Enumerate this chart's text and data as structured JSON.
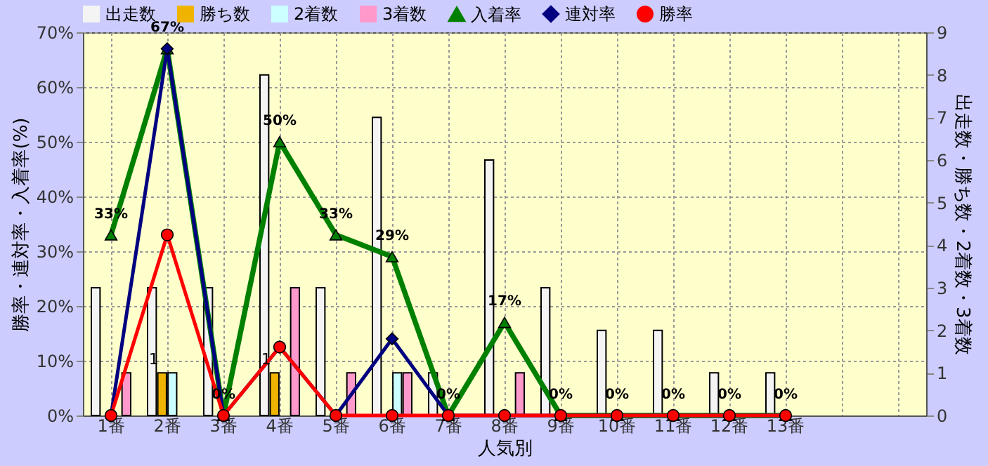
{
  "chart_data": {
    "type": "bar",
    "xlabel": "人気別",
    "ylabel": "勝率・連対率・入着率(%)",
    "y2label": "出走数・勝ち数・2着数・3着数",
    "categories": [
      "1番",
      "2番",
      "3番",
      "4番",
      "5番",
      "6番",
      "7番",
      "8番",
      "9番",
      "10番",
      "11番",
      "12番",
      "13番",
      null,
      null
    ],
    "ylim": [
      0,
      70
    ],
    "yticks": [
      {
        "value": 0,
        "label": "0%"
      },
      {
        "value": 10,
        "label": "10%"
      },
      {
        "value": 20,
        "label": "20%"
      },
      {
        "value": 30,
        "label": "30%"
      },
      {
        "value": 40,
        "label": "40%"
      },
      {
        "value": 50,
        "label": "50%"
      },
      {
        "value": 60,
        "label": "60%"
      },
      {
        "value": 70,
        "label": "70%"
      }
    ],
    "y2lim": [
      0,
      9
    ],
    "y2ticks": [
      0,
      1,
      2,
      3,
      4,
      5,
      6,
      7,
      8,
      9
    ],
    "grid": true,
    "legend": "top",
    "series": [
      {
        "name": "出走数",
        "axis": "y2",
        "color": "#f4f4f4",
        "values": [
          3,
          3,
          3,
          8,
          3,
          7,
          1,
          6,
          3,
          2,
          2,
          1,
          1,
          null,
          null
        ]
      },
      {
        "name": "勝ち数",
        "axis": "y2",
        "color": "#f0b400",
        "values": [
          0,
          1,
          0,
          1,
          0,
          0,
          0,
          0,
          0,
          0,
          0,
          0,
          0,
          null,
          null
        ],
        "value_labels": [
          null,
          "1",
          null,
          "1",
          null,
          null,
          null,
          null,
          null,
          null,
          null,
          null,
          null,
          null,
          null
        ]
      },
      {
        "name": "2着数",
        "axis": "y2",
        "color": "#ccffff",
        "values": [
          0,
          1,
          0,
          0,
          0,
          1,
          0,
          0,
          0,
          0,
          0,
          0,
          0,
          null,
          null
        ]
      },
      {
        "name": "3着数",
        "axis": "y2",
        "color": "#ff99cc",
        "values": [
          1,
          0,
          0,
          3,
          1,
          1,
          0,
          1,
          0,
          0,
          0,
          0,
          0,
          null,
          null
        ]
      },
      {
        "name": "入着率",
        "type": "line",
        "marker": "triangle",
        "color": "#008000",
        "values": [
          33,
          67,
          0,
          50,
          33,
          29,
          0,
          17,
          0,
          0,
          0,
          0,
          0,
          null,
          null
        ],
        "value_labels": [
          "33%",
          "67%",
          "0%",
          "50%",
          "33%",
          "29%",
          "0%",
          "17%",
          "0%",
          "0%",
          "0%",
          "0%",
          "0%",
          null,
          null
        ]
      },
      {
        "name": "連対率",
        "type": "line",
        "marker": "diamond",
        "color": "#000080",
        "values": [
          0,
          67,
          0,
          12.5,
          0,
          14,
          0,
          0,
          0,
          0,
          0,
          0,
          0,
          null,
          null
        ]
      },
      {
        "name": "勝率",
        "type": "line",
        "marker": "circle",
        "color": "#ff0000",
        "values": [
          0,
          33,
          0,
          12.5,
          0,
          0,
          0,
          0,
          0,
          0,
          0,
          0,
          0,
          null,
          null
        ]
      }
    ]
  }
}
